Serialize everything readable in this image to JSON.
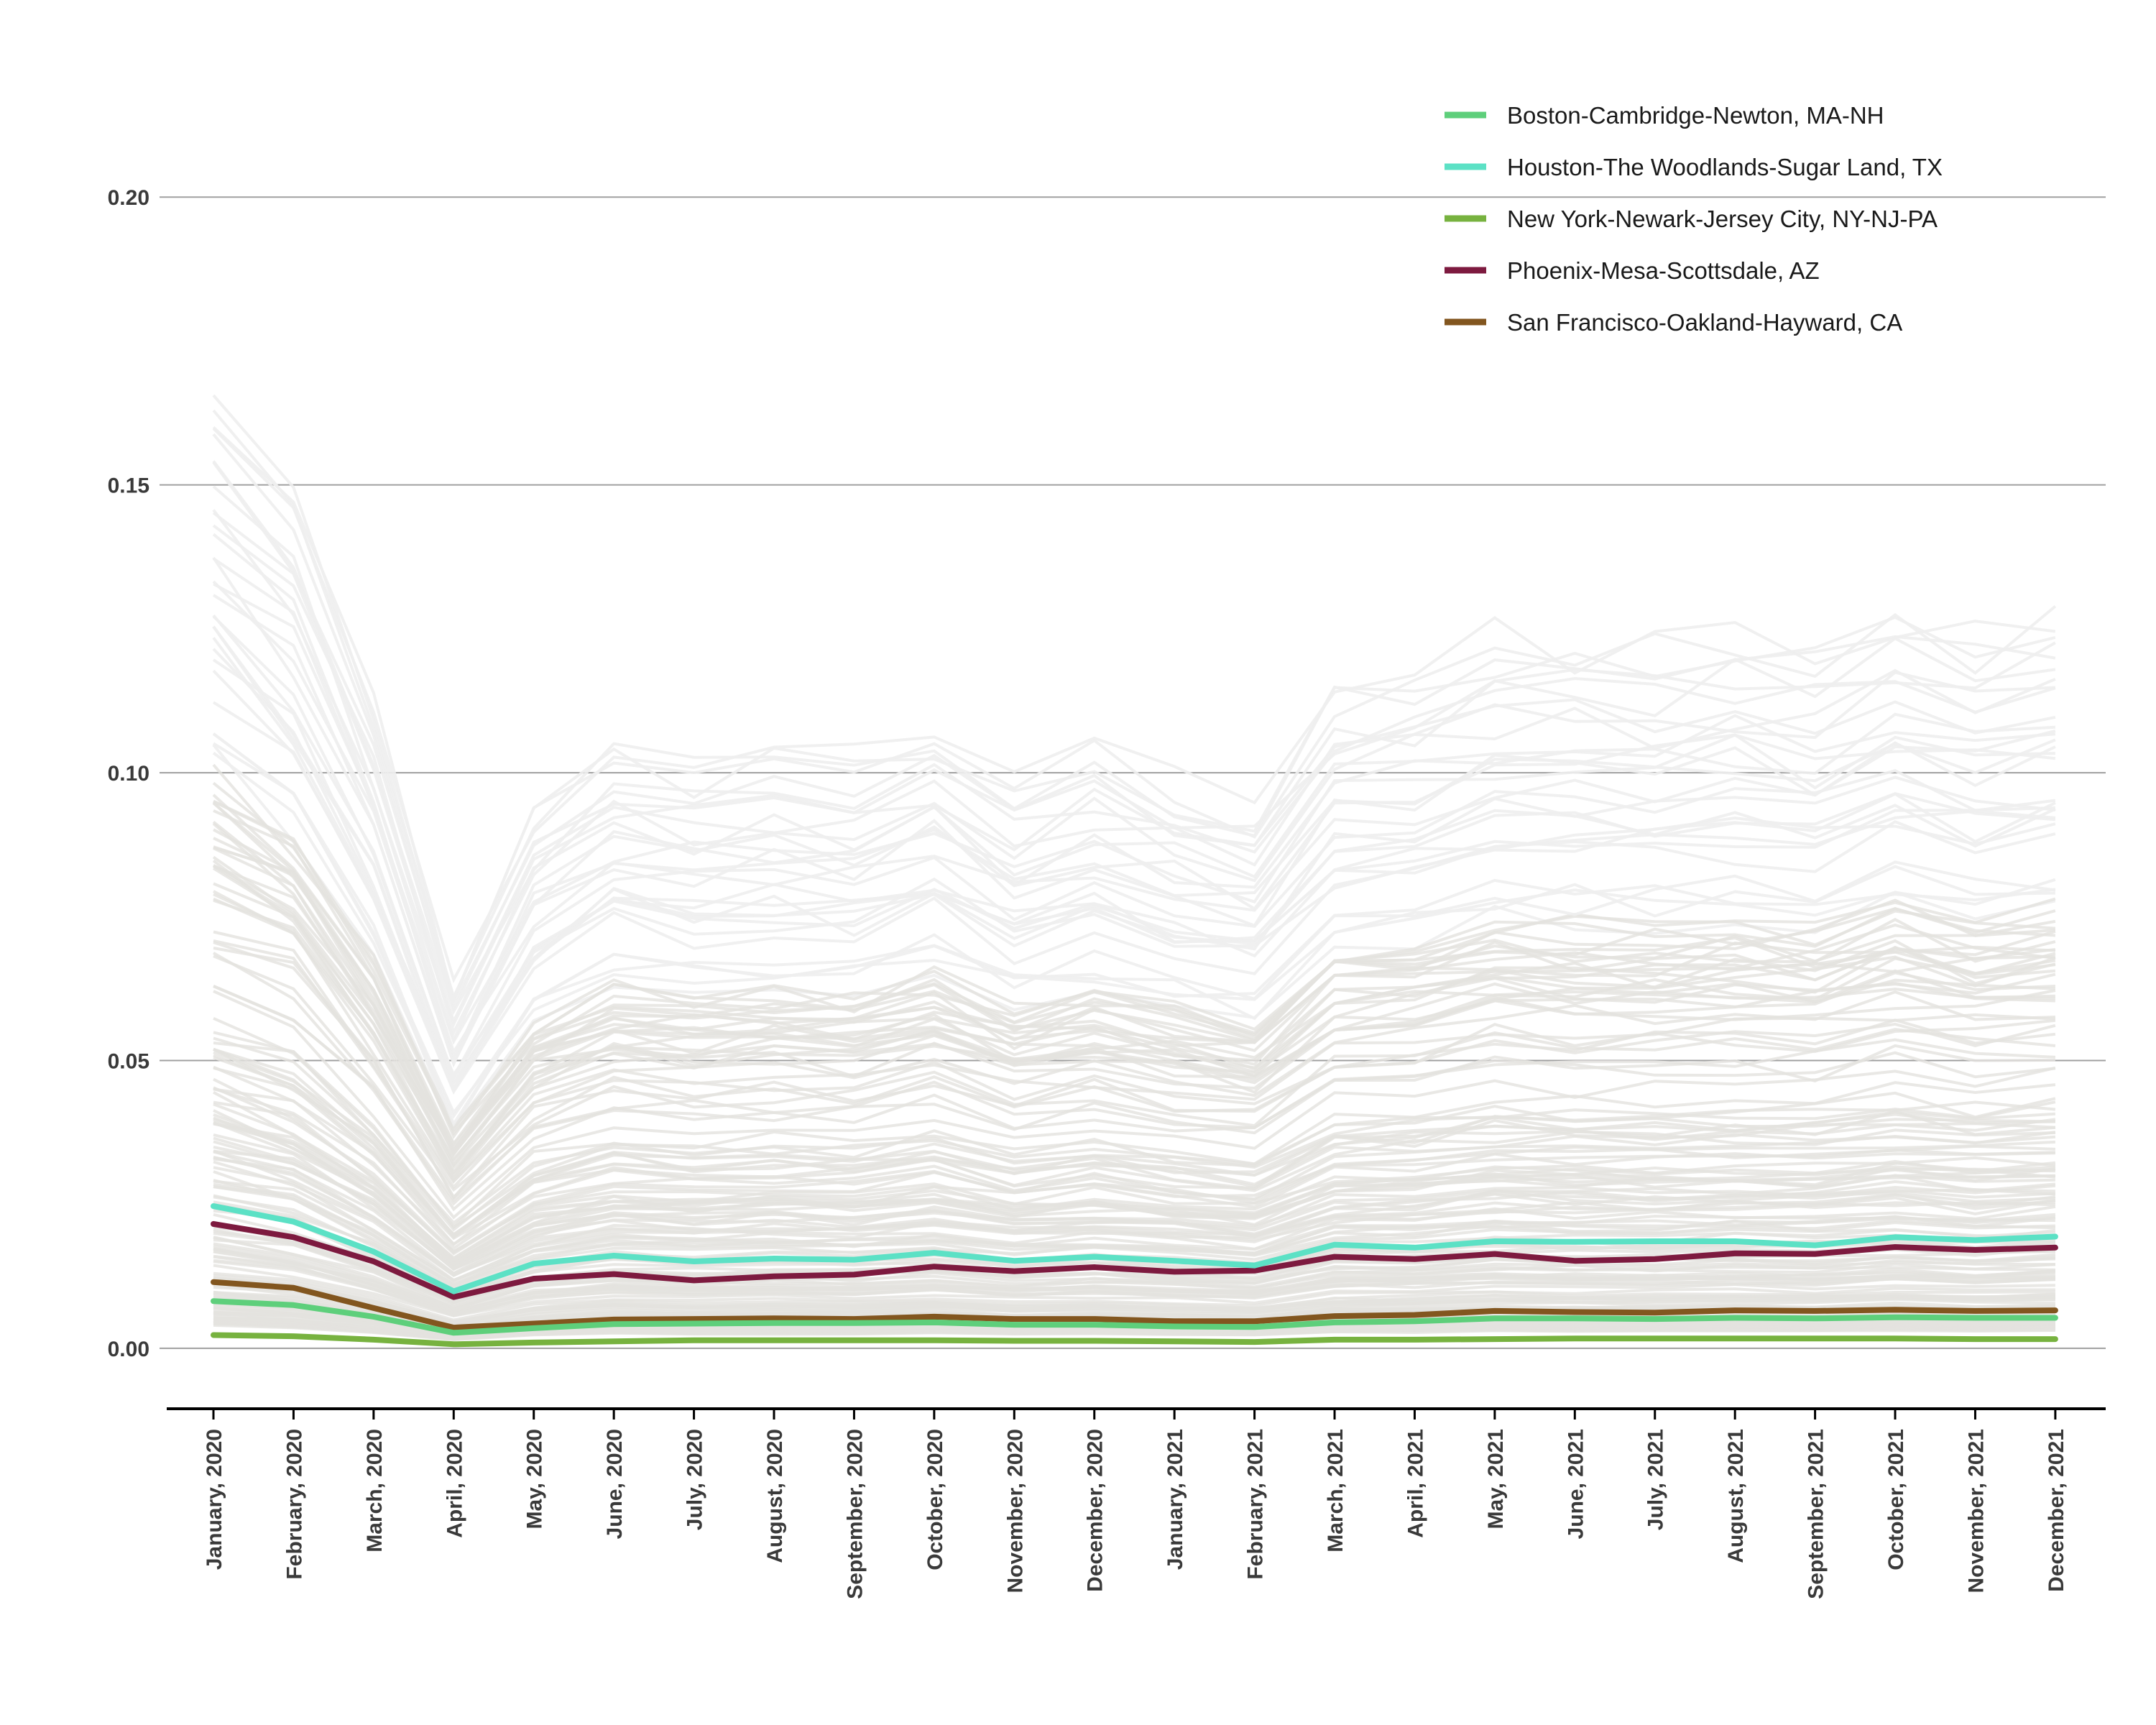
{
  "chart_data": {
    "type": "line",
    "title": "",
    "xlabel": "",
    "ylabel": "",
    "ylim": [
      -0.0105,
      0.2255
    ],
    "yticks": [
      0.0,
      0.05,
      0.1,
      0.15,
      0.2
    ],
    "ytick_labels": [
      "0.00",
      "0.05",
      "0.10",
      "0.15",
      "0.20"
    ],
    "grid": "horizontal",
    "legend_position": "top-right",
    "categories": [
      "January, 2020",
      "February, 2020",
      "March, 2020",
      "April, 2020",
      "May, 2020",
      "June, 2020",
      "July, 2020",
      "August, 2020",
      "September, 2020",
      "October, 2020",
      "November, 2020",
      "December, 2020",
      "January, 2021",
      "February, 2021",
      "March, 2021",
      "April, 2021",
      "May, 2021",
      "June, 2021",
      "July, 2021",
      "August, 2021",
      "September, 2021",
      "October, 2021",
      "November, 2021",
      "December, 2021"
    ],
    "series": [
      {
        "name": "Boston-Cambridge-Newton, MA-NH",
        "color": "#5ecf7b",
        "values": [
          0.0082,
          0.0075,
          0.0055,
          0.0027,
          0.0035,
          0.0042,
          0.0043,
          0.0044,
          0.0044,
          0.0045,
          0.0041,
          0.0041,
          0.0038,
          0.0037,
          0.0045,
          0.0047,
          0.0052,
          0.0052,
          0.0051,
          0.0053,
          0.0052,
          0.0054,
          0.0053,
          0.0053
        ]
      },
      {
        "name": "Houston-The Woodlands-Sugar Land, TX",
        "color": "#5ce1c5",
        "values": [
          0.0247,
          0.022,
          0.0168,
          0.0099,
          0.0147,
          0.0161,
          0.0151,
          0.0156,
          0.0154,
          0.0166,
          0.0152,
          0.0159,
          0.0152,
          0.0144,
          0.018,
          0.0175,
          0.0186,
          0.0185,
          0.0186,
          0.0186,
          0.0179,
          0.0193,
          0.0188,
          0.0194
        ]
      },
      {
        "name": "New York-Newark-Jersey City, NY-NJ-PA",
        "color": "#77b23f",
        "values": [
          0.0023,
          0.0021,
          0.0015,
          0.0007,
          0.001,
          0.0012,
          0.0014,
          0.0014,
          0.0014,
          0.0014,
          0.0013,
          0.0013,
          0.0012,
          0.0011,
          0.0015,
          0.0015,
          0.0016,
          0.0017,
          0.0017,
          0.0017,
          0.0017,
          0.0017,
          0.0016,
          0.0016
        ]
      },
      {
        "name": "Phoenix-Mesa-Scottsdale, AZ",
        "color": "#7d1a3f",
        "values": [
          0.0216,
          0.0193,
          0.0151,
          0.0089,
          0.0121,
          0.0129,
          0.0118,
          0.0125,
          0.0128,
          0.0142,
          0.0134,
          0.0141,
          0.0133,
          0.0135,
          0.0159,
          0.0155,
          0.0164,
          0.0152,
          0.0155,
          0.0165,
          0.0164,
          0.0176,
          0.0171,
          0.0175
        ]
      },
      {
        "name": "San Francisco-Oakland-Hayward, CA",
        "color": "#82561f",
        "values": [
          0.0115,
          0.0105,
          0.007,
          0.0036,
          0.0043,
          0.005,
          0.0051,
          0.0052,
          0.0051,
          0.0055,
          0.0051,
          0.0051,
          0.0047,
          0.0047,
          0.0056,
          0.0058,
          0.0065,
          0.0063,
          0.0062,
          0.0066,
          0.0065,
          0.0067,
          0.0065,
          0.0066
        ]
      }
    ]
  }
}
